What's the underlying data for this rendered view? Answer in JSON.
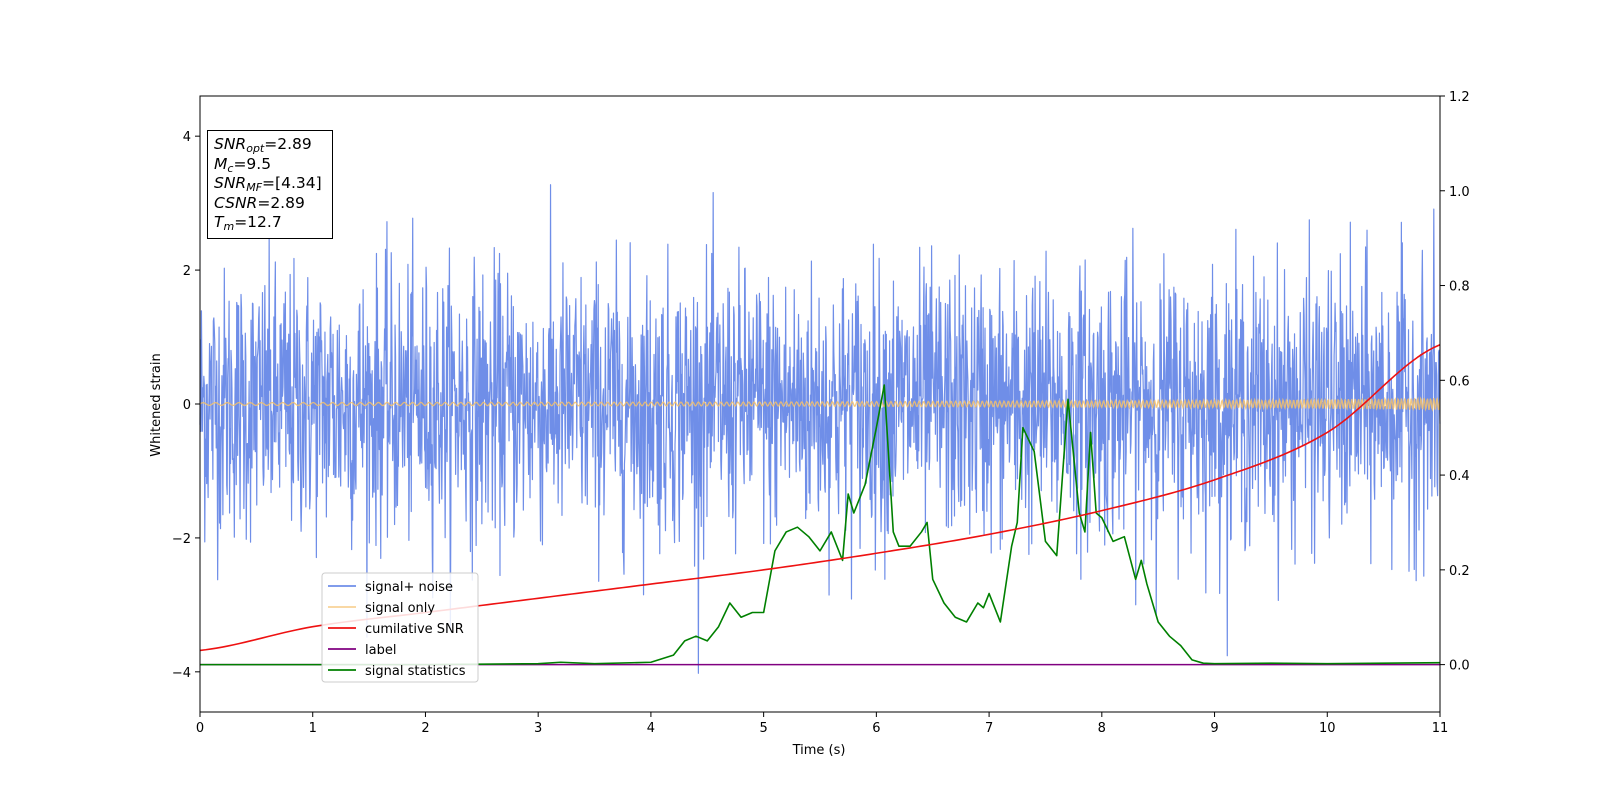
{
  "chart_data": {
    "type": "line",
    "xlabel": "Time (s)",
    "ylabel": "Whitened strain",
    "xlim": [
      0,
      11
    ],
    "ylim": [
      -4.6,
      4.6
    ],
    "y2lim": [
      -0.1,
      1.2
    ],
    "x_ticks": [
      "0",
      "1",
      "2",
      "3",
      "4",
      "5",
      "6",
      "7",
      "8",
      "9",
      "10",
      "11"
    ],
    "y_ticks": [
      "−4",
      "−2",
      "0",
      "2",
      "4"
    ],
    "y2_ticks": [
      "0.0",
      "0.2",
      "0.4",
      "0.6",
      "0.8",
      "1.0",
      "1.2"
    ],
    "grid": false,
    "legend_position": "bottom-left",
    "colors": {
      "signal_noise": "#6f8ee8",
      "signal_only": "#f5c16b",
      "cumulative_snr": "#ee1111",
      "label": "#800080",
      "signal_statistics": "#008000"
    },
    "series": [
      {
        "name": "signal+ noise",
        "axis": "left",
        "style": "noise",
        "approx_range": [
          -4.1,
          4.2
        ],
        "typical_amplitude": 2.0
      },
      {
        "name": "signal only",
        "axis": "left",
        "style": "oscillation",
        "x": [
          0,
          5,
          8,
          9.5,
          10.5,
          11
        ],
        "amplitude": [
          0.02,
          0.03,
          0.05,
          0.06,
          0.08,
          0.09
        ]
      },
      {
        "name": "cumilative SNR",
        "axis": "right",
        "x": [
          0,
          1,
          2,
          3,
          4,
          5,
          6,
          7,
          8,
          9,
          10,
          11
        ],
        "values": [
          0.03,
          0.08,
          0.11,
          0.14,
          0.17,
          0.2,
          0.235,
          0.275,
          0.325,
          0.39,
          0.49,
          0.675
        ]
      },
      {
        "name": "label",
        "axis": "right",
        "x": [
          0,
          11
        ],
        "values": [
          0.0,
          0.0
        ]
      },
      {
        "name": "signal statistics",
        "axis": "right",
        "x": [
          0,
          1,
          2,
          3,
          3.2,
          3.5,
          4,
          4.2,
          4.3,
          4.4,
          4.5,
          4.6,
          4.7,
          4.8,
          4.9,
          5.0,
          5.1,
          5.2,
          5.3,
          5.4,
          5.5,
          5.6,
          5.7,
          5.75,
          5.8,
          5.9,
          6.0,
          6.07,
          6.15,
          6.2,
          6.3,
          6.4,
          6.45,
          6.5,
          6.6,
          6.7,
          6.8,
          6.9,
          6.95,
          7.0,
          7.1,
          7.2,
          7.25,
          7.3,
          7.4,
          7.5,
          7.6,
          7.7,
          7.8,
          7.85,
          7.9,
          7.95,
          8.0,
          8.1,
          8.2,
          8.3,
          8.35,
          8.4,
          8.5,
          8.6,
          8.7,
          8.8,
          8.9,
          9.0,
          9.5,
          10.0,
          10.5,
          11.0
        ],
        "values": [
          0.0,
          0.0,
          0.0,
          0.002,
          0.005,
          0.002,
          0.005,
          0.02,
          0.05,
          0.06,
          0.05,
          0.08,
          0.13,
          0.1,
          0.11,
          0.11,
          0.24,
          0.28,
          0.29,
          0.27,
          0.24,
          0.28,
          0.22,
          0.36,
          0.32,
          0.38,
          0.5,
          0.59,
          0.28,
          0.25,
          0.25,
          0.28,
          0.3,
          0.18,
          0.13,
          0.1,
          0.09,
          0.13,
          0.12,
          0.15,
          0.09,
          0.25,
          0.3,
          0.5,
          0.45,
          0.26,
          0.23,
          0.56,
          0.32,
          0.28,
          0.49,
          0.32,
          0.31,
          0.26,
          0.27,
          0.18,
          0.22,
          0.17,
          0.09,
          0.06,
          0.04,
          0.01,
          0.003,
          0.002,
          0.003,
          0.002,
          0.003,
          0.004
        ]
      }
    ]
  },
  "info": {
    "snr_opt": "=2.89",
    "mc": "=9.5",
    "snr_mf": "=[4.34]",
    "csnr": "=2.89",
    "tm": "=12.7"
  }
}
